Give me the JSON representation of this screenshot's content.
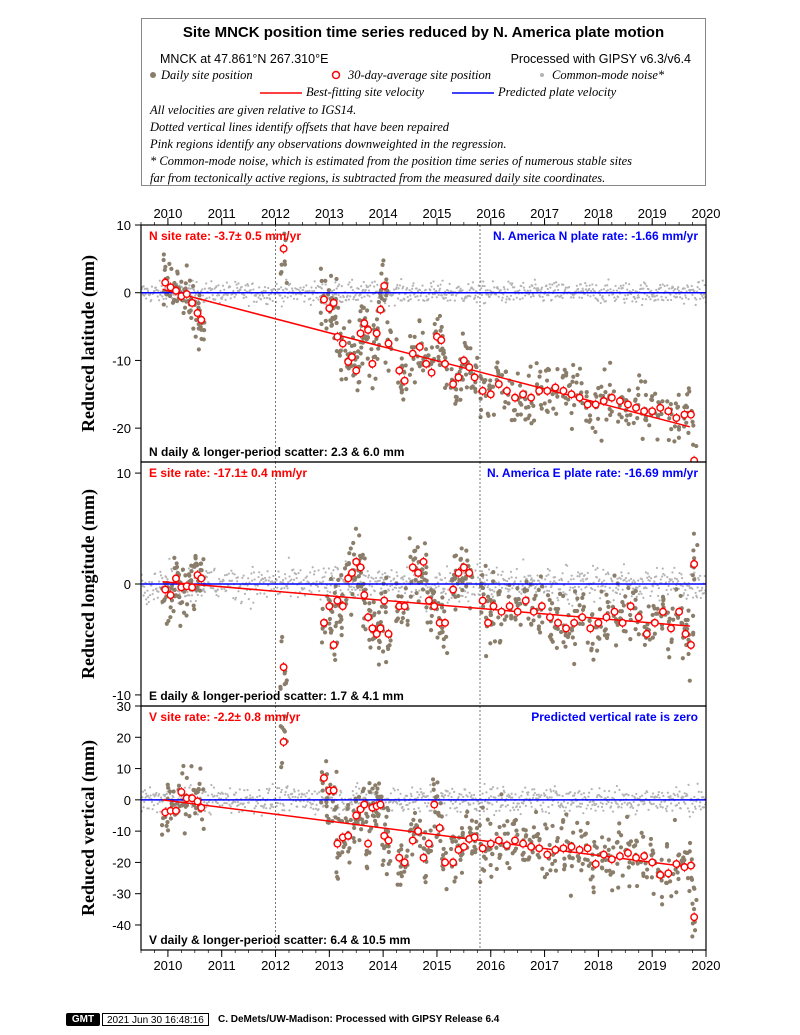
{
  "legend": {
    "title": "Site MNCK position time series reduced by N. America plate motion",
    "site_info": "MNCK at 47.861°N 267.310°E",
    "processing": "Processed with GIPSY v6.3/v6.4",
    "daily_label": "Daily site position",
    "avg_label": "30-day-average site position",
    "cm_label": "Common-mode noise*",
    "best_label": "Best-fitting site velocity",
    "pred_label": "Predicted plate velocity",
    "notes": [
      "All velocities are given relative to IGS14.",
      "Dotted vertical lines identify offsets that have been repaired",
      "Pink regions identify any observations downweighted in the regression.",
      "* Common-mode noise, which is estimated from the position time series of numerous stable sites",
      "far from tectonically active regions, is subtracted from the measured daily site coordinates."
    ],
    "colors": {
      "daily": "#8a7d6a",
      "common_mode": "#b4b4b4",
      "avg_stroke": "#ff0000",
      "best_fit": "#ff0000",
      "plate": "#0000ff"
    }
  },
  "chart_data": [
    {
      "type": "scatter",
      "panel": "north",
      "ylabel": "Reduced latitude (mm)",
      "x_ticks": [
        "2010",
        "2011",
        "2012",
        "2013",
        "2014",
        "2015",
        "2016",
        "2017",
        "2018",
        "2019",
        "2020"
      ],
      "xlim": [
        2009.5,
        2020.0
      ],
      "ylim": [
        -25,
        10
      ],
      "y_ticks": [
        "10",
        "0",
        "-10",
        "-20"
      ],
      "site_rate_text": "N site rate:  -3.7± 0.5 mm/yr",
      "plate_rate_text": "N. America N plate rate: -1.66 mm/yr",
      "scatter_text": "N daily & longer-period scatter:   2.3 &   6.0 mm",
      "offset_years": [
        2012.0,
        2015.8
      ],
      "best_fit": {
        "x": [
          2009.9,
          2019.7
        ],
        "y": [
          0.5,
          -19.8
        ]
      },
      "plate_line_y": 0,
      "averages": [
        {
          "x": 2009.95,
          "y": 1.5
        },
        {
          "x": 2010.05,
          "y": 0.8
        },
        {
          "x": 2010.15,
          "y": 0.3
        },
        {
          "x": 2010.25,
          "y": -0.5
        },
        {
          "x": 2010.35,
          "y": -0.2
        },
        {
          "x": 2010.45,
          "y": -1.5
        },
        {
          "x": 2010.55,
          "y": -3.0
        },
        {
          "x": 2010.62,
          "y": -4.0
        },
        {
          "x": 2012.15,
          "y": 6.5
        },
        {
          "x": 2012.9,
          "y": -1.0
        },
        {
          "x": 2013.0,
          "y": -2.3
        },
        {
          "x": 2013.08,
          "y": -1.5
        },
        {
          "x": 2013.15,
          "y": -6.5
        },
        {
          "x": 2013.25,
          "y": -7.5
        },
        {
          "x": 2013.35,
          "y": -10.2
        },
        {
          "x": 2013.42,
          "y": -9.5
        },
        {
          "x": 2013.5,
          "y": -11.5
        },
        {
          "x": 2013.58,
          "y": -6.0
        },
        {
          "x": 2013.65,
          "y": -4.5
        },
        {
          "x": 2013.72,
          "y": -5.5
        },
        {
          "x": 2013.8,
          "y": -10.5
        },
        {
          "x": 2013.88,
          "y": -6.0
        },
        {
          "x": 2013.95,
          "y": -2.5
        },
        {
          "x": 2014.02,
          "y": 1.0
        },
        {
          "x": 2014.1,
          "y": -7.5
        },
        {
          "x": 2014.3,
          "y": -11.5
        },
        {
          "x": 2014.4,
          "y": -13.0
        },
        {
          "x": 2014.55,
          "y": -9.0
        },
        {
          "x": 2014.68,
          "y": -8.0
        },
        {
          "x": 2014.8,
          "y": -10.5
        },
        {
          "x": 2014.9,
          "y": -11.8
        },
        {
          "x": 2015.0,
          "y": -6.5
        },
        {
          "x": 2015.08,
          "y": -7.0
        },
        {
          "x": 2015.15,
          "y": -10.5
        },
        {
          "x": 2015.3,
          "y": -13.5
        },
        {
          "x": 2015.4,
          "y": -12.5
        },
        {
          "x": 2015.5,
          "y": -10.0
        },
        {
          "x": 2015.6,
          "y": -11.0
        },
        {
          "x": 2015.7,
          "y": -12.5
        },
        {
          "x": 2015.85,
          "y": -14.5
        },
        {
          "x": 2016.0,
          "y": -15.0
        },
        {
          "x": 2016.15,
          "y": -13.5
        },
        {
          "x": 2016.3,
          "y": -14.5
        },
        {
          "x": 2016.45,
          "y": -15.5
        },
        {
          "x": 2016.6,
          "y": -15.0
        },
        {
          "x": 2016.75,
          "y": -15.5
        },
        {
          "x": 2016.9,
          "y": -14.5
        },
        {
          "x": 2017.05,
          "y": -14.5
        },
        {
          "x": 2017.2,
          "y": -14.0
        },
        {
          "x": 2017.35,
          "y": -14.5
        },
        {
          "x": 2017.5,
          "y": -15.0
        },
        {
          "x": 2017.65,
          "y": -15.5
        },
        {
          "x": 2017.8,
          "y": -16.5
        },
        {
          "x": 2017.95,
          "y": -16.5
        },
        {
          "x": 2018.1,
          "y": -16.0
        },
        {
          "x": 2018.25,
          "y": -15.5
        },
        {
          "x": 2018.4,
          "y": -16.0
        },
        {
          "x": 2018.55,
          "y": -16.5
        },
        {
          "x": 2018.7,
          "y": -17.0
        },
        {
          "x": 2018.85,
          "y": -17.5
        },
        {
          "x": 2019.0,
          "y": -17.5
        },
        {
          "x": 2019.15,
          "y": -17.0
        },
        {
          "x": 2019.3,
          "y": -17.5
        },
        {
          "x": 2019.45,
          "y": -18.5
        },
        {
          "x": 2019.6,
          "y": -18.0
        },
        {
          "x": 2019.72,
          "y": -18.0
        },
        {
          "x": 2019.78,
          "y": -24.8
        }
      ]
    },
    {
      "type": "scatter",
      "panel": "east",
      "ylabel": "Reduced longitude (mm)",
      "x_ticks": [
        "2010",
        "2011",
        "2012",
        "2013",
        "2014",
        "2015",
        "2016",
        "2017",
        "2018",
        "2019",
        "2020"
      ],
      "xlim": [
        2009.5,
        2020.0
      ],
      "ylim": [
        -11,
        11
      ],
      "y_ticks": [
        "10",
        "0",
        "-10"
      ],
      "site_rate_text": "E site rate: -17.1± 0.4 mm/yr",
      "plate_rate_text": "N. America E plate rate: -16.69 mm/yr",
      "scatter_text": "E daily & longer-period scatter:   1.7 &   4.1 mm",
      "offset_years": [
        2012.0,
        2015.8
      ],
      "best_fit": {
        "x": [
          2009.9,
          2019.7
        ],
        "y": [
          0.2,
          -3.8
        ]
      },
      "plate_line_y": 0,
      "averages": [
        {
          "x": 2009.95,
          "y": -0.5
        },
        {
          "x": 2010.05,
          "y": -1.0
        },
        {
          "x": 2010.15,
          "y": 0.5
        },
        {
          "x": 2010.25,
          "y": -0.3
        },
        {
          "x": 2010.35,
          "y": -0.2
        },
        {
          "x": 2010.45,
          "y": -0.3
        },
        {
          "x": 2010.55,
          "y": 0.8
        },
        {
          "x": 2010.62,
          "y": 0.5
        },
        {
          "x": 2012.15,
          "y": -7.5
        },
        {
          "x": 2012.9,
          "y": -3.5
        },
        {
          "x": 2013.0,
          "y": -2.0
        },
        {
          "x": 2013.08,
          "y": -5.5
        },
        {
          "x": 2013.15,
          "y": -1.5
        },
        {
          "x": 2013.25,
          "y": -2.0
        },
        {
          "x": 2013.35,
          "y": 0.5
        },
        {
          "x": 2013.42,
          "y": 1.0
        },
        {
          "x": 2013.5,
          "y": 2.0
        },
        {
          "x": 2013.58,
          "y": 1.5
        },
        {
          "x": 2013.65,
          "y": -1.0
        },
        {
          "x": 2013.72,
          "y": -3.0
        },
        {
          "x": 2013.8,
          "y": -4.0
        },
        {
          "x": 2013.88,
          "y": -4.5
        },
        {
          "x": 2013.95,
          "y": -4.0
        },
        {
          "x": 2014.02,
          "y": -1.5
        },
        {
          "x": 2014.1,
          "y": -4.5
        },
        {
          "x": 2014.3,
          "y": -2.0
        },
        {
          "x": 2014.4,
          "y": -2.0
        },
        {
          "x": 2014.55,
          "y": 1.5
        },
        {
          "x": 2014.65,
          "y": 1.0
        },
        {
          "x": 2014.75,
          "y": 2.0
        },
        {
          "x": 2014.85,
          "y": -1.5
        },
        {
          "x": 2014.95,
          "y": -2.0
        },
        {
          "x": 2015.05,
          "y": -3.5
        },
        {
          "x": 2015.15,
          "y": -3.5
        },
        {
          "x": 2015.3,
          "y": -0.5
        },
        {
          "x": 2015.4,
          "y": 1.0
        },
        {
          "x": 2015.5,
          "y": 1.5
        },
        {
          "x": 2015.6,
          "y": 1.0
        },
        {
          "x": 2015.85,
          "y": -1.5
        },
        {
          "x": 2015.95,
          "y": -3.5
        },
        {
          "x": 2016.05,
          "y": -2.0
        },
        {
          "x": 2016.2,
          "y": -2.5
        },
        {
          "x": 2016.35,
          "y": -2.0
        },
        {
          "x": 2016.5,
          "y": -2.5
        },
        {
          "x": 2016.65,
          "y": -1.5
        },
        {
          "x": 2016.8,
          "y": -2.5
        },
        {
          "x": 2016.95,
          "y": -2.0
        },
        {
          "x": 2017.1,
          "y": -3.0
        },
        {
          "x": 2017.25,
          "y": -3.5
        },
        {
          "x": 2017.4,
          "y": -4.0
        },
        {
          "x": 2017.55,
          "y": -3.5
        },
        {
          "x": 2017.7,
          "y": -3.0
        },
        {
          "x": 2017.85,
          "y": -4.0
        },
        {
          "x": 2018.0,
          "y": -3.5
        },
        {
          "x": 2018.15,
          "y": -3.0
        },
        {
          "x": 2018.3,
          "y": -2.5
        },
        {
          "x": 2018.45,
          "y": -3.5
        },
        {
          "x": 2018.6,
          "y": -2.0
        },
        {
          "x": 2018.75,
          "y": -3.0
        },
        {
          "x": 2018.9,
          "y": -4.5
        },
        {
          "x": 2019.05,
          "y": -3.5
        },
        {
          "x": 2019.2,
          "y": -2.5
        },
        {
          "x": 2019.35,
          "y": -4.0
        },
        {
          "x": 2019.5,
          "y": -2.5
        },
        {
          "x": 2019.62,
          "y": -4.5
        },
        {
          "x": 2019.72,
          "y": -5.5
        },
        {
          "x": 2019.78,
          "y": 1.8
        }
      ]
    },
    {
      "type": "scatter",
      "panel": "vertical",
      "ylabel": "Reduced vertical (mm)",
      "x_ticks": [
        "2010",
        "2011",
        "2012",
        "2013",
        "2014",
        "2015",
        "2016",
        "2017",
        "2018",
        "2019",
        "2020"
      ],
      "xlim": [
        2009.5,
        2020.0
      ],
      "ylim": [
        -48,
        30
      ],
      "y_ticks": [
        "30",
        "20",
        "10",
        "0",
        "-10",
        "-20",
        "-30",
        "-40"
      ],
      "site_rate_text": "V site rate:  -2.2± 0.8 mm/yr",
      "plate_rate_text": "Predicted vertical rate is zero",
      "scatter_text": "V daily & longer-period scatter:   6.4 &   10.5 mm",
      "offset_years": [
        2012.0,
        2015.8
      ],
      "best_fit": {
        "x": [
          2009.9,
          2019.7
        ],
        "y": [
          0.0,
          -21.5
        ]
      },
      "plate_line_y": 0,
      "averages": [
        {
          "x": 2009.95,
          "y": -4.0
        },
        {
          "x": 2010.05,
          "y": -3.5
        },
        {
          "x": 2010.15,
          "y": -3.5
        },
        {
          "x": 2010.25,
          "y": 2.5
        },
        {
          "x": 2010.35,
          "y": 0.5
        },
        {
          "x": 2010.45,
          "y": 0.5
        },
        {
          "x": 2010.55,
          "y": -0.5
        },
        {
          "x": 2010.62,
          "y": -2.5
        },
        {
          "x": 2012.15,
          "y": 18.5
        },
        {
          "x": 2012.9,
          "y": 7.0
        },
        {
          "x": 2013.0,
          "y": 3.0
        },
        {
          "x": 2013.08,
          "y": 3.0
        },
        {
          "x": 2013.15,
          "y": -14.0
        },
        {
          "x": 2013.25,
          "y": -12.0
        },
        {
          "x": 2013.35,
          "y": -11.5
        },
        {
          "x": 2013.5,
          "y": -5.0
        },
        {
          "x": 2013.58,
          "y": -3.0
        },
        {
          "x": 2013.65,
          "y": -1.5
        },
        {
          "x": 2013.72,
          "y": -14.0
        },
        {
          "x": 2013.8,
          "y": -2.5
        },
        {
          "x": 2013.88,
          "y": -2.0
        },
        {
          "x": 2013.95,
          "y": -1.5
        },
        {
          "x": 2014.02,
          "y": -11.5
        },
        {
          "x": 2014.1,
          "y": -13.0
        },
        {
          "x": 2014.3,
          "y": -18.5
        },
        {
          "x": 2014.4,
          "y": -20.0
        },
        {
          "x": 2014.55,
          "y": -13.0
        },
        {
          "x": 2014.65,
          "y": -10.0
        },
        {
          "x": 2014.75,
          "y": -18.5
        },
        {
          "x": 2014.85,
          "y": -14.0
        },
        {
          "x": 2014.95,
          "y": -1.5
        },
        {
          "x": 2015.05,
          "y": -9.0
        },
        {
          "x": 2015.15,
          "y": -20.0
        },
        {
          "x": 2015.3,
          "y": -20.0
        },
        {
          "x": 2015.4,
          "y": -16.0
        },
        {
          "x": 2015.5,
          "y": -15.0
        },
        {
          "x": 2015.6,
          "y": -12.5
        },
        {
          "x": 2015.7,
          "y": -12.0
        },
        {
          "x": 2015.85,
          "y": -15.5
        },
        {
          "x": 2016.0,
          "y": -14.0
        },
        {
          "x": 2016.15,
          "y": -13.0
        },
        {
          "x": 2016.3,
          "y": -14.5
        },
        {
          "x": 2016.45,
          "y": -13.0
        },
        {
          "x": 2016.6,
          "y": -14.0
        },
        {
          "x": 2016.75,
          "y": -15.0
        },
        {
          "x": 2016.9,
          "y": -15.5
        },
        {
          "x": 2017.05,
          "y": -17.5
        },
        {
          "x": 2017.2,
          "y": -16.0
        },
        {
          "x": 2017.35,
          "y": -15.5
        },
        {
          "x": 2017.5,
          "y": -15.0
        },
        {
          "x": 2017.65,
          "y": -16.0
        },
        {
          "x": 2017.8,
          "y": -15.5
        },
        {
          "x": 2017.95,
          "y": -20.5
        },
        {
          "x": 2018.1,
          "y": -17.5
        },
        {
          "x": 2018.25,
          "y": -19.0
        },
        {
          "x": 2018.4,
          "y": -18.0
        },
        {
          "x": 2018.55,
          "y": -17.0
        },
        {
          "x": 2018.7,
          "y": -18.5
        },
        {
          "x": 2018.85,
          "y": -18.0
        },
        {
          "x": 2019.0,
          "y": -20.0
        },
        {
          "x": 2019.15,
          "y": -24.0
        },
        {
          "x": 2019.3,
          "y": -23.5
        },
        {
          "x": 2019.45,
          "y": -20.5
        },
        {
          "x": 2019.6,
          "y": -21.5
        },
        {
          "x": 2019.72,
          "y": -21.0
        },
        {
          "x": 2019.78,
          "y": -37.5
        }
      ]
    }
  ],
  "footer": {
    "logo": "GMT",
    "timestamp": "2021 Jun 30 16:48:16",
    "credit": "C. DeMets/UW-Madison: Processed with GIPSY Release 6.4"
  }
}
